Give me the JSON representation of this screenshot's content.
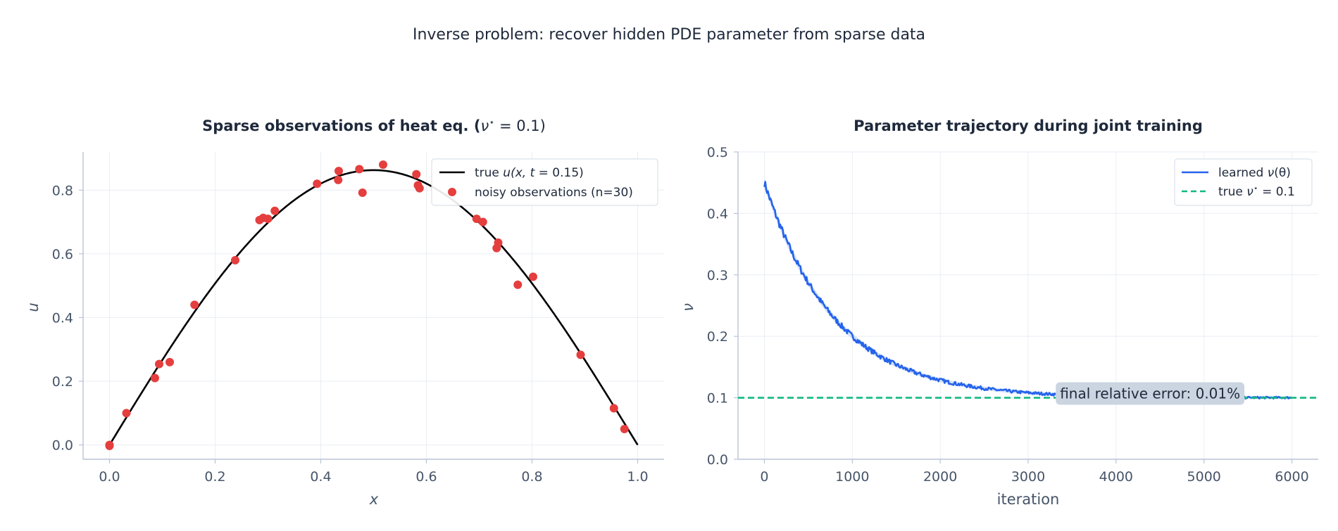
{
  "suptitle": "Inverse problem: recover hidden PDE parameter from sparse data",
  "colors": {
    "true_curve": "#000000",
    "observations": "#e53e3e",
    "learned": "#2563eb",
    "learned_band": "#bfd3f5",
    "true_param": "#10b981",
    "annotation_box": "#cbd5e1"
  },
  "chart_data": [
    {
      "type": "scatter",
      "title": "Sparse observations of heat eq. (ν* = 0.1)",
      "title_parts": {
        "prefix": "Sparse observations of heat eq. (",
        "nu": "ν",
        "star": "⋆",
        "suffix": " = 0.1)"
      },
      "xlabel": "x",
      "ylabel": "u",
      "xlim": [
        -0.05,
        1.05
      ],
      "ylim": [
        -0.045,
        0.92
      ],
      "xticks": [
        0.0,
        0.2,
        0.4,
        0.6,
        0.8,
        1.0
      ],
      "xtick_labels": [
        "0.0",
        "0.2",
        "0.4",
        "0.6",
        "0.8",
        "1.0"
      ],
      "yticks": [
        0.0,
        0.2,
        0.4,
        0.6,
        0.8
      ],
      "ytick_labels": [
        "0.0",
        "0.2",
        "0.4",
        "0.6",
        "0.8"
      ],
      "grid": true,
      "legend_position": "top-right",
      "series": [
        {
          "name": "true u(x, t = 0.15)",
          "legend_parts": {
            "prefix": "true ",
            "u": "u",
            "args": "(x, t",
            "suffix": " = 0.15)"
          },
          "kind": "line",
          "amplitude": 0.8628,
          "function": "amplitude * sin(pi * x)"
        },
        {
          "name": "noisy observations (n=30)",
          "kind": "scatter",
          "points": [
            [
              0.0,
              0.0
            ],
            [
              0.032,
              0.1
            ],
            [
              0.086,
              0.21
            ],
            [
              0.094,
              0.254
            ],
            [
              0.114,
              0.26
            ],
            [
              0.161,
              0.44
            ],
            [
              0.238,
              0.58
            ],
            [
              0.284,
              0.706
            ],
            [
              0.291,
              0.713
            ],
            [
              0.3,
              0.71
            ],
            [
              0.313,
              0.735
            ],
            [
              0.393,
              0.82
            ],
            [
              0.433,
              0.832
            ],
            [
              0.434,
              0.86
            ],
            [
              0.473,
              0.866
            ],
            [
              0.479,
              0.792
            ],
            [
              0.518,
              0.88
            ],
            [
              0.581,
              0.85
            ],
            [
              0.584,
              0.815
            ],
            [
              0.587,
              0.806
            ],
            [
              0.695,
              0.71
            ],
            [
              0.707,
              0.7
            ],
            [
              0.733,
              0.618
            ],
            [
              0.736,
              0.635
            ],
            [
              0.773,
              0.503
            ],
            [
              0.802,
              0.528
            ],
            [
              0.892,
              0.283
            ],
            [
              0.955,
              0.115
            ],
            [
              0.975,
              0.05
            ],
            [
              0.0,
              -0.003
            ]
          ]
        }
      ]
    },
    {
      "type": "line",
      "title": "Parameter trajectory during joint training",
      "xlabel": "iteration",
      "ylabel": "ν",
      "xlim": [
        -300,
        6300
      ],
      "ylim": [
        0.0,
        0.5
      ],
      "xticks": [
        0,
        1000,
        2000,
        3000,
        4000,
        5000,
        6000
      ],
      "xtick_labels": [
        "0",
        "1000",
        "2000",
        "3000",
        "4000",
        "5000",
        "6000"
      ],
      "yticks": [
        0.0,
        0.1,
        0.2,
        0.3,
        0.4,
        0.5
      ],
      "ytick_labels": [
        "0.0",
        "0.1",
        "0.2",
        "0.3",
        "0.4",
        "0.5"
      ],
      "grid": true,
      "legend_position": "top-right",
      "series": [
        {
          "name": "learned ν(θ)",
          "legend_parts": {
            "prefix": "learned ",
            "nu": "ν",
            "args": "(θ)"
          },
          "kind": "noisy-line-with-band",
          "x_range": [
            0,
            6000
          ],
          "start_value": 0.45,
          "final_value": 0.1,
          "decay_constant": 800
        },
        {
          "name": "true ν* = 0.1",
          "legend_parts": {
            "prefix": "true ",
            "nu": "ν",
            "star": "⋆",
            "suffix": " = 0.1"
          },
          "kind": "dashed-hline",
          "y": 0.1
        }
      ],
      "annotation": {
        "text": "final relative error: 0.01%",
        "x": 3330,
        "y": 0.107
      }
    }
  ]
}
